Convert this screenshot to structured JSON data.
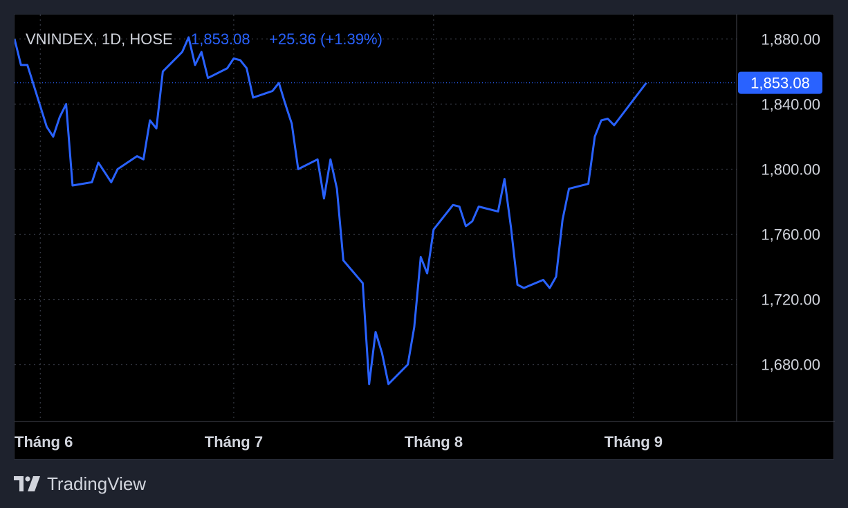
{
  "legend": {
    "symbol": "VNINDEX, 1D, HOSE",
    "last": "1,853.08",
    "change": "+25.36 (+1.39%)"
  },
  "last_price_label": "1,853.08",
  "brand": {
    "name": "TradingView",
    "icon": "tradingview-logo-icon"
  },
  "colors": {
    "line": "#2962ff",
    "background": "#000000",
    "page": "#1e222d",
    "grid": "#363a45",
    "text": "#d1d4dc"
  },
  "chart_data": {
    "type": "line",
    "y_ticks": [
      "1,880.00",
      "1,840.00",
      "1,800.00",
      "1,760.00",
      "1,720.00",
      "1,680.00"
    ],
    "y_tick_values": [
      1880,
      1840,
      1800,
      1760,
      1720,
      1680
    ],
    "x_ticks": [
      "Tháng 6",
      "Tháng 7",
      "Tháng 8",
      "Tháng 9"
    ],
    "x_tick_dates": [
      "2025-06-01",
      "2025-07-01",
      "2025-08-01",
      "2025-09-01"
    ],
    "ylim": [
      1645,
      1895
    ],
    "xlim": [
      "2025-05-28",
      "2025-09-17"
    ],
    "grid": true,
    "last_value": 1853.08,
    "series": [
      {
        "x": [
          "2025-05-28",
          "2025-05-29",
          "2025-05-30",
          "2025-06-02",
          "2025-06-03",
          "2025-06-04",
          "2025-06-05",
          "2025-06-06",
          "2025-06-09",
          "2025-06-10",
          "2025-06-11",
          "2025-06-12",
          "2025-06-13",
          "2025-06-16",
          "2025-06-17",
          "2025-06-18",
          "2025-06-19",
          "2025-06-20",
          "2025-06-23",
          "2025-06-24",
          "2025-06-25",
          "2025-06-26",
          "2025-06-27",
          "2025-06-30",
          "2025-07-01",
          "2025-07-02",
          "2025-07-03",
          "2025-07-04",
          "2025-07-07",
          "2025-07-08",
          "2025-07-09",
          "2025-07-10",
          "2025-07-11",
          "2025-07-14",
          "2025-07-15",
          "2025-07-16",
          "2025-07-17",
          "2025-07-18",
          "2025-07-21",
          "2025-07-22",
          "2025-07-23",
          "2025-07-24",
          "2025-07-25",
          "2025-07-28",
          "2025-07-29",
          "2025-07-30",
          "2025-07-31",
          "2025-08-01",
          "2025-08-04",
          "2025-08-05",
          "2025-08-06",
          "2025-08-07",
          "2025-08-08",
          "2025-08-11",
          "2025-08-12",
          "2025-08-13",
          "2025-08-14",
          "2025-08-15",
          "2025-08-18",
          "2025-08-19",
          "2025-08-20",
          "2025-08-21",
          "2025-08-22",
          "2025-08-25",
          "2025-08-26",
          "2025-08-27",
          "2025-08-28",
          "2025-08-29",
          "2025-09-03"
        ],
        "values": [
          1880,
          1864,
          1864,
          1826,
          1820,
          1832,
          1840,
          1790,
          1792,
          1804,
          1798,
          1792,
          1800,
          1808,
          1806,
          1830,
          1825,
          1860,
          1872,
          1881,
          1864,
          1872,
          1856,
          1862,
          1868,
          1867,
          1862,
          1844,
          1848,
          1853,
          1840,
          1828,
          1800,
          1806,
          1782,
          1806,
          1788,
          1744,
          1730,
          1668,
          1700,
          1687,
          1668,
          1680,
          1703,
          1746,
          1736,
          1763,
          1778,
          1777,
          1765,
          1768,
          1777,
          1774,
          1794,
          1764,
          1729,
          1727,
          1732,
          1727,
          1734,
          1769,
          1788,
          1791,
          1820,
          1830,
          1831,
          1827,
          1853.08
        ]
      }
    ]
  }
}
